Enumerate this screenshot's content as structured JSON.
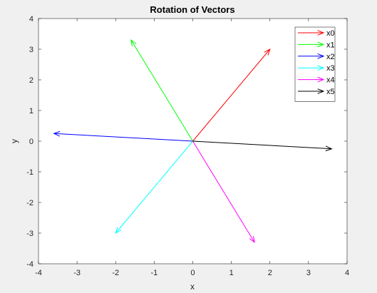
{
  "chart_data": {
    "type": "quiver",
    "title": "Rotation of Vectors",
    "xlabel": "x",
    "ylabel": "y",
    "xlim": [
      -4,
      4
    ],
    "ylim": [
      -4,
      4
    ],
    "xticks": [
      "-4",
      "-3",
      "-2",
      "-1",
      "0",
      "1",
      "2",
      "3",
      "4"
    ],
    "yticks": [
      "-4",
      "-3",
      "-2",
      "-1",
      "0",
      "1",
      "2",
      "3",
      "4"
    ],
    "grid": false,
    "legend_position": "top-right",
    "series": [
      {
        "name": "x0",
        "x0": 0,
        "y0": 0,
        "x": 2.0,
        "y": 3.0,
        "color": "#ff0000"
      },
      {
        "name": "x1",
        "x0": 0,
        "y0": 0,
        "x": -1.6,
        "y": 3.3,
        "color": "#00ff00"
      },
      {
        "name": "x2",
        "x0": 0,
        "y0": 0,
        "x": -3.6,
        "y": 0.25,
        "color": "#0000ff"
      },
      {
        "name": "x3",
        "x0": 0,
        "y0": 0,
        "x": -2.0,
        "y": -3.0,
        "color": "#00ffff"
      },
      {
        "name": "x4",
        "x0": 0,
        "y0": 0,
        "x": 1.6,
        "y": -3.3,
        "color": "#ff00ff"
      },
      {
        "name": "x5",
        "x0": 0,
        "y0": 0,
        "x": 3.6,
        "y": -0.25,
        "color": "#000000"
      }
    ]
  }
}
